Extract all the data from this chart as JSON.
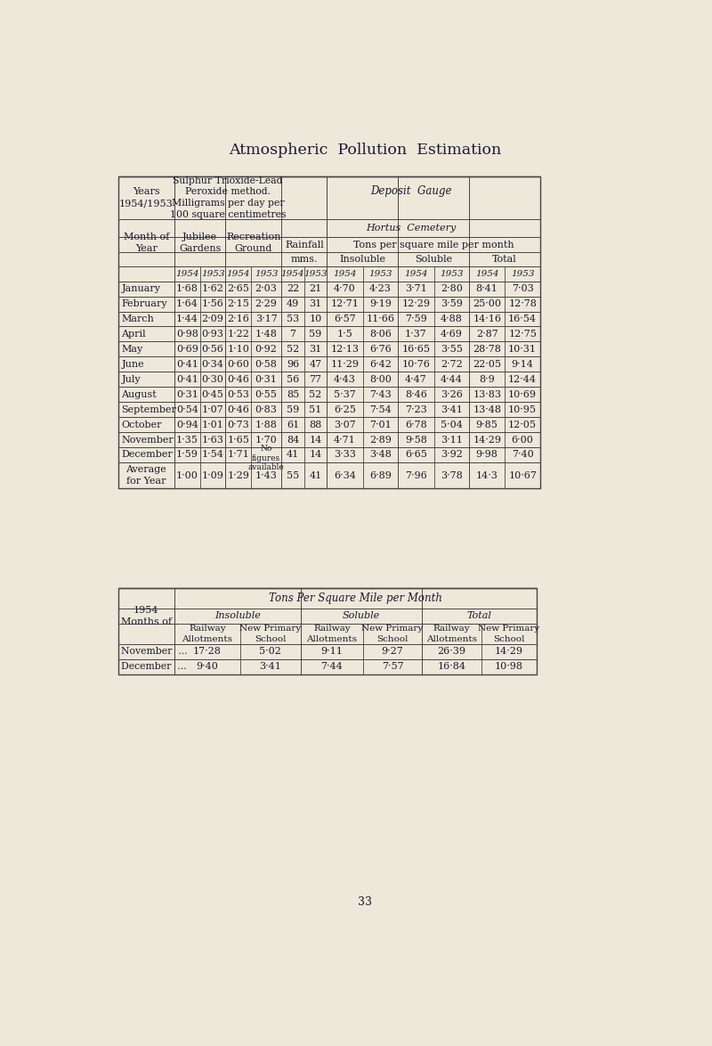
{
  "title": "Atmospheric  Pollution  Estimation",
  "bg_color": "#ede8da",
  "table1": {
    "months": [
      "January",
      "February",
      "March",
      "April",
      "May",
      "June",
      "July",
      "August",
      "September",
      "October",
      "November",
      "December"
    ],
    "jubilee_1954": [
      "1·68",
      "1·64",
      "1·44",
      "0·98",
      "0·69",
      "0·41",
      "0·41",
      "0·31",
      "0·54",
      "0·94",
      "1·35",
      "1·59"
    ],
    "jubilee_1953": [
      "1·62",
      "1·56",
      "2·09",
      "0·93",
      "0·56",
      "0·34",
      "0·30",
      "0·45",
      "1·07",
      "1·01",
      "1·63",
      "1·54"
    ],
    "recreation_1954": [
      "2·65",
      "2·15",
      "2·16",
      "1·22",
      "1·10",
      "0·60",
      "0·46",
      "0·53",
      "0·46",
      "0·73",
      "1·65",
      "1·71"
    ],
    "recreation_1953": [
      "2·03",
      "2·29",
      "3·17",
      "1·48",
      "0·92",
      "0·58",
      "0·31",
      "0·55",
      "0·83",
      "1·88",
      "1·70",
      "No\nfigures\navailable"
    ],
    "rainfall_1954": [
      "22",
      "49",
      "53",
      "7",
      "52",
      "96",
      "56",
      "85",
      "59",
      "61",
      "84",
      "41"
    ],
    "rainfall_1953": [
      "21",
      "31",
      "10",
      "59",
      "31",
      "47",
      "77",
      "52",
      "51",
      "88",
      "14",
      "14"
    ],
    "insol_1954": [
      "4·70",
      "12·71",
      "6·57",
      "1·5",
      "12·13",
      "11·29",
      "4·43",
      "5·37",
      "6·25",
      "3·07",
      "4·71",
      "3·33"
    ],
    "insol_1953": [
      "4·23",
      "9·19",
      "11·66",
      "8·06",
      "6·76",
      "6·42",
      "8·00",
      "7·43",
      "7·54",
      "7·01",
      "2·89",
      "3·48"
    ],
    "soluble_1954": [
      "3·71",
      "12·29",
      "7·59",
      "1·37",
      "16·65",
      "10·76",
      "4·47",
      "8·46",
      "7·23",
      "6·78",
      "9·58",
      "6·65"
    ],
    "soluble_1953": [
      "2·80",
      "3·59",
      "4·88",
      "4·69",
      "3·55",
      "2·72",
      "4·44",
      "3·26",
      "3·41",
      "5·04",
      "3·11",
      "3·92"
    ],
    "total_1954": [
      "8·41",
      "25·00",
      "14·16",
      "2·87",
      "28·78",
      "22·05",
      "8·9",
      "13·83",
      "13·48",
      "9·85",
      "14·29",
      "9·98"
    ],
    "total_1953": [
      "7·03",
      "12·78",
      "16·54",
      "12·75",
      "10·31",
      "9·14",
      "12·44",
      "10·69",
      "10·95",
      "12·05",
      "6·00",
      "7·40"
    ],
    "avg_jubilee_1954": "1·00",
    "avg_jubilee_1953": "1·09",
    "avg_recreation_1954": "1·29",
    "avg_recreation_1953": "1·43",
    "avg_rainfall_1954": "55",
    "avg_rainfall_1953": "41",
    "avg_insol_1954": "6·34",
    "avg_insol_1953": "6·89",
    "avg_soluble_1954": "7·96",
    "avg_soluble_1953": "3·78",
    "avg_total_1954": "14·3",
    "avg_total_1953": "10·67"
  },
  "table2": {
    "header_main": "Tons Per Square Mile per Month",
    "insol_header": "Insoluble",
    "soluble_header": "Soluble",
    "total_header": "Total",
    "months": [
      "November  ...",
      "December  ..."
    ],
    "insol_railway": [
      "17·28",
      "9·40"
    ],
    "insol_school": [
      "5·02",
      "3·41"
    ],
    "soluble_railway": [
      "9·11",
      "7·44"
    ],
    "soluble_school": [
      "9·27",
      "7·57"
    ],
    "total_railway": [
      "26·39",
      "16·84"
    ],
    "total_school": [
      "14·29",
      "10·98"
    ]
  },
  "page_num": "33"
}
